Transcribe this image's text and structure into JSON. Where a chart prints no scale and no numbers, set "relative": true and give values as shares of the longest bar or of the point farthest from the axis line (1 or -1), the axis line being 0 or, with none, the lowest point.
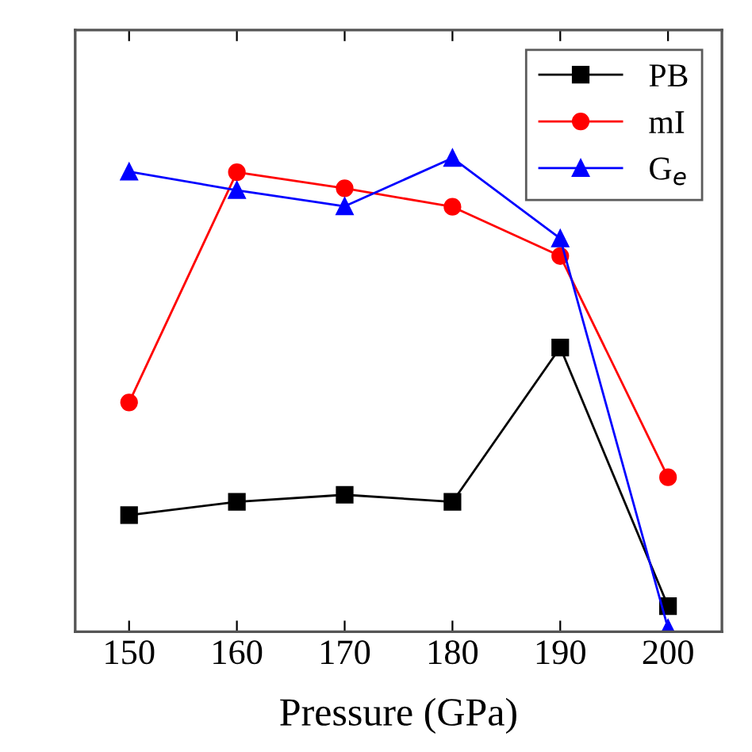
{
  "chart_data": {
    "type": "line",
    "relative": true,
    "xlabel": "Pressure (GPa)",
    "x": [
      150,
      160,
      170,
      180,
      190,
      200
    ],
    "xlim": [
      145,
      205
    ],
    "xticks": [
      150,
      160,
      170,
      180,
      190,
      200
    ],
    "tick_labels": "x",
    "legend": "top right",
    "grid": false,
    "line_style": "solid",
    "series": [
      {
        "name": "PB",
        "color": "#000000",
        "marker": "square",
        "values": [
          0.246,
          0.274,
          0.289,
          0.274,
          0.6,
          0.054
        ]
      },
      {
        "name": "mI",
        "color": "#ff0000",
        "marker": "circle",
        "values": [
          0.484,
          0.97,
          0.936,
          0.897,
          0.793,
          0.326
        ]
      },
      {
        "name": "G$_{e}$",
        "color": "#0000ff",
        "marker": "triangle",
        "values": [
          0.971,
          0.932,
          0.898,
          1,
          0.83,
          0.007
        ]
      }
    ]
  }
}
